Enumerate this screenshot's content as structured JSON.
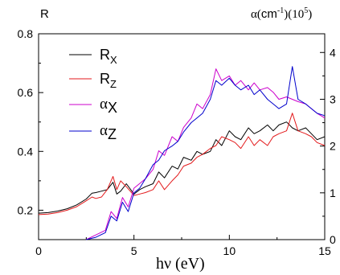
{
  "chart_data": {
    "type": "line",
    "x_axis": {
      "label_symbol": "hν",
      "label_unit": " (eV)",
      "range": [
        0,
        15
      ],
      "ticks": [
        0,
        5,
        10,
        15
      ],
      "tick_labels": [
        "0",
        "5",
        "10",
        "15"
      ]
    },
    "y_left": {
      "label": "R",
      "range": [
        0.1,
        0.8
      ],
      "ticks": [
        0.2,
        0.4,
        0.6,
        0.8
      ],
      "tick_labels": [
        "0.2",
        "0.4",
        "0.6",
        "0.8"
      ]
    },
    "y_right": {
      "label_prefix": "α(",
      "label_unit": "cm",
      "label_exp": "-1",
      "label_suffix": ")(10",
      "label_sup": "5",
      "label_end": ")",
      "range": [
        0,
        4.4
      ],
      "ticks": [
        0,
        1,
        2,
        3,
        4
      ],
      "tick_labels": [
        "0",
        "1",
        "2",
        "3",
        "4"
      ]
    },
    "legend": {
      "position": "top-left",
      "entries": [
        {
          "symbol": "R",
          "sub": "X",
          "color": "#000000"
        },
        {
          "symbol": "R",
          "sub": "Z",
          "color": "#e31a1c"
        },
        {
          "symbol": "α",
          "sub": "X",
          "color": "#cc00cc"
        },
        {
          "symbol": "α",
          "sub": "Z",
          "color": "#0000cc"
        }
      ]
    },
    "series": [
      {
        "key": "Rx",
        "axis": "left",
        "color": "#000000",
        "x": [
          0,
          0.5,
          1,
          1.5,
          2,
          2.5,
          2.8,
          3.0,
          3.3,
          3.6,
          3.9,
          4.1,
          4.3,
          4.6,
          5.0,
          5.3,
          5.6,
          6.0,
          6.3,
          6.6,
          7.0,
          7.3,
          7.6,
          8.0,
          8.3,
          8.6,
          9.0,
          9.3,
          9.6,
          10.0,
          10.3,
          10.6,
          11.0,
          11.3,
          11.6,
          12.0,
          12.3,
          12.6,
          13.0,
          13.3,
          13.6,
          14.0,
          14.3,
          14.6,
          15.0
        ],
        "y": [
          0.19,
          0.192,
          0.197,
          0.205,
          0.218,
          0.238,
          0.258,
          0.26,
          0.265,
          0.27,
          0.295,
          0.255,
          0.265,
          0.29,
          0.255,
          0.27,
          0.28,
          0.29,
          0.33,
          0.31,
          0.35,
          0.34,
          0.38,
          0.37,
          0.4,
          0.39,
          0.4,
          0.44,
          0.42,
          0.47,
          0.45,
          0.44,
          0.48,
          0.46,
          0.47,
          0.49,
          0.47,
          0.49,
          0.5,
          0.48,
          0.47,
          0.48,
          0.46,
          0.44,
          0.45
        ]
      },
      {
        "key": "Rz",
        "axis": "left",
        "color": "#e31a1c",
        "x": [
          0,
          0.5,
          1,
          1.5,
          2,
          2.5,
          2.8,
          3.0,
          3.3,
          3.6,
          3.9,
          4.1,
          4.3,
          4.6,
          5.0,
          5.3,
          5.6,
          6.0,
          6.3,
          6.6,
          7.0,
          7.3,
          7.6,
          8.0,
          8.3,
          8.6,
          9.0,
          9.3,
          9.6,
          10.0,
          10.3,
          10.6,
          11.0,
          11.3,
          11.6,
          12.0,
          12.3,
          12.6,
          13.0,
          13.3,
          13.6,
          14.0,
          14.3,
          14.6,
          15.0
        ],
        "y": [
          0.185,
          0.187,
          0.192,
          0.2,
          0.212,
          0.232,
          0.245,
          0.24,
          0.245,
          0.27,
          0.315,
          0.27,
          0.3,
          0.28,
          0.25,
          0.255,
          0.26,
          0.27,
          0.3,
          0.27,
          0.3,
          0.32,
          0.35,
          0.36,
          0.38,
          0.39,
          0.41,
          0.42,
          0.45,
          0.44,
          0.43,
          0.41,
          0.45,
          0.42,
          0.44,
          0.42,
          0.45,
          0.46,
          0.47,
          0.53,
          0.47,
          0.46,
          0.45,
          0.43,
          0.42
        ]
      },
      {
        "key": "ax",
        "axis": "right",
        "color": "#cc00cc",
        "x": [
          2.5,
          3.0,
          3.5,
          3.8,
          4.1,
          4.4,
          4.7,
          5.0,
          5.3,
          5.6,
          6.0,
          6.3,
          6.6,
          7.0,
          7.3,
          7.6,
          8.0,
          8.3,
          8.6,
          9.0,
          9.3,
          9.6,
          10.0,
          10.3,
          10.6,
          11.0,
          11.3,
          11.6,
          12.0,
          12.3,
          12.6,
          13.0,
          13.3,
          13.6,
          14.0,
          14.3,
          14.6,
          15.0
        ],
        "y": [
          0.0,
          0.1,
          0.2,
          0.6,
          0.45,
          0.9,
          0.7,
          1.1,
          1.2,
          1.3,
          1.5,
          1.9,
          1.8,
          2.2,
          2.1,
          2.4,
          2.6,
          2.9,
          2.8,
          3.1,
          3.65,
          3.4,
          3.5,
          3.3,
          3.4,
          3.2,
          3.35,
          3.2,
          3.25,
          3.15,
          3.0,
          3.05,
          3.0,
          2.95,
          2.9,
          2.8,
          2.7,
          2.6
        ]
      },
      {
        "key": "az",
        "axis": "right",
        "color": "#0000cc",
        "x": [
          2.5,
          3.0,
          3.5,
          3.8,
          4.1,
          4.4,
          4.7,
          5.0,
          5.3,
          5.6,
          6.0,
          6.3,
          6.6,
          7.0,
          7.3,
          7.6,
          8.0,
          8.3,
          8.6,
          9.0,
          9.3,
          9.6,
          10.0,
          10.3,
          10.6,
          11.0,
          11.3,
          11.6,
          12.0,
          12.3,
          12.6,
          13.0,
          13.3,
          13.6,
          14.0,
          14.3,
          14.6,
          15.0
        ],
        "y": [
          0.0,
          0.05,
          0.15,
          0.5,
          0.4,
          0.8,
          0.6,
          1.0,
          1.1,
          1.3,
          1.6,
          1.7,
          1.9,
          2.0,
          2.1,
          2.3,
          2.5,
          2.6,
          2.7,
          3.0,
          3.4,
          3.3,
          3.45,
          3.3,
          3.2,
          3.3,
          3.1,
          3.2,
          3.0,
          2.9,
          2.8,
          2.9,
          3.7,
          3.0,
          2.9,
          2.8,
          2.7,
          2.65
        ]
      }
    ]
  }
}
